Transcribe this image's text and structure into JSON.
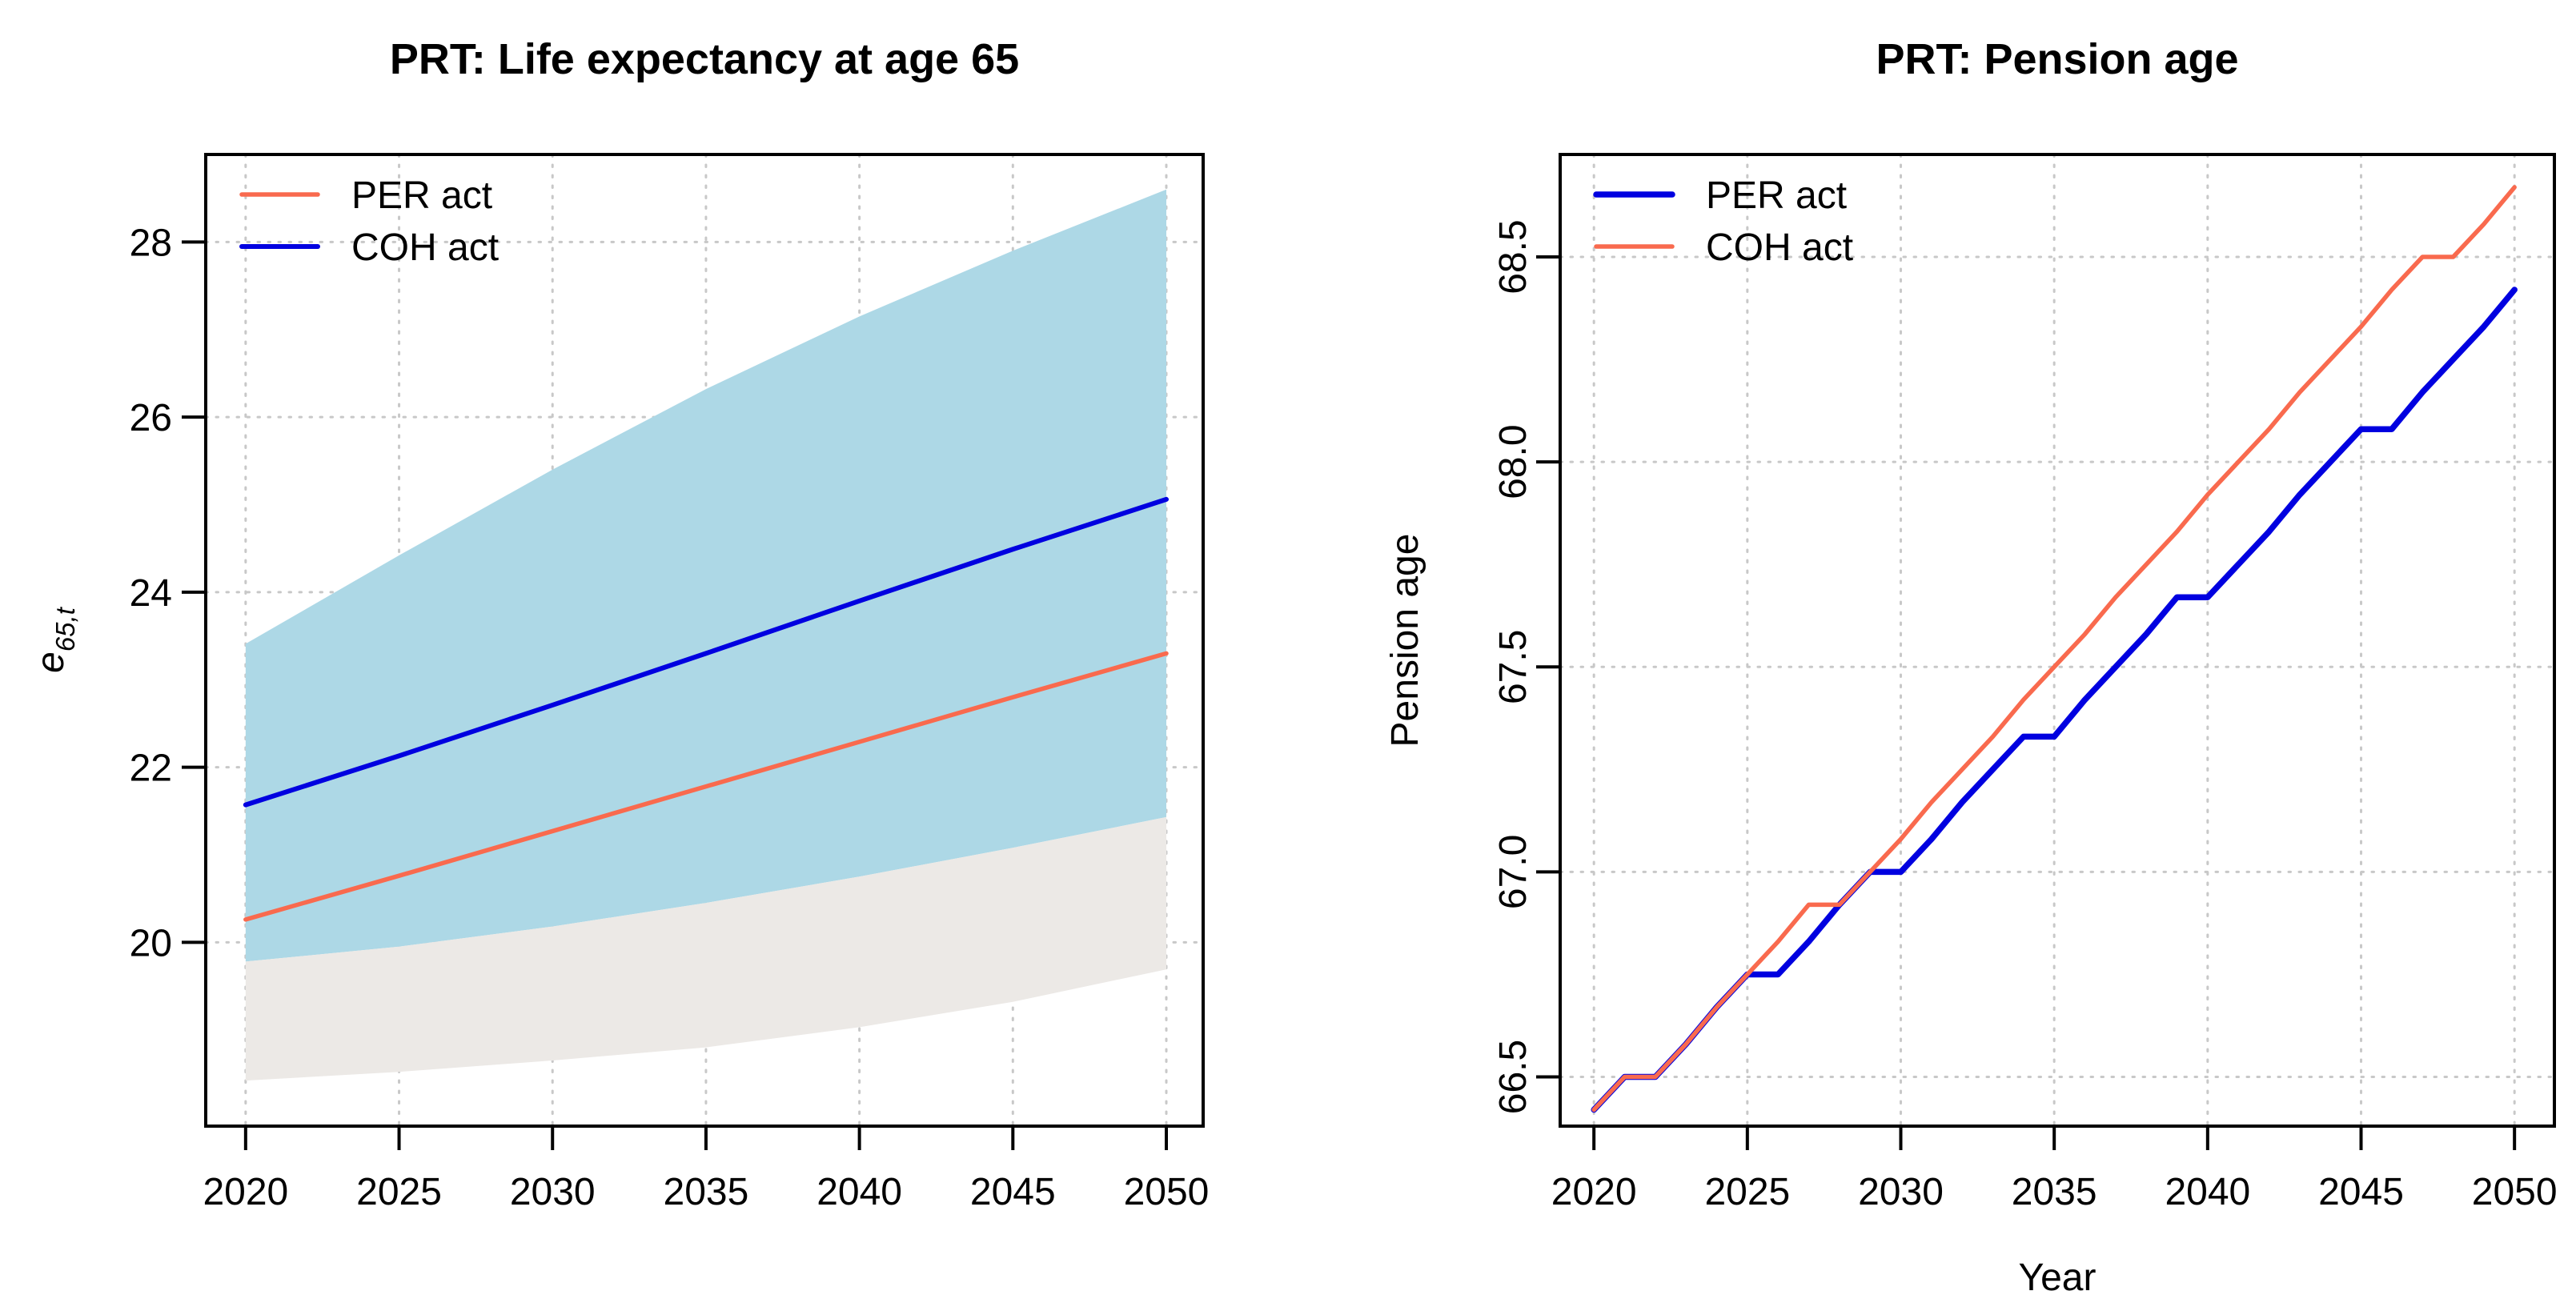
{
  "page": {
    "background": "#FFFFFF"
  },
  "colors": {
    "salmon": "#F96A4E",
    "blue": "#0000E0",
    "band_inner": "#ADD8E6",
    "band_outer": "#ECE9E6",
    "grid": "#C8C8C8",
    "axis": "#000000"
  },
  "chart_data": [
    {
      "id": "life-expectancy",
      "type": "line",
      "title": "PRT: Life expectancy at age 65",
      "xlabel": "",
      "ylabel": {
        "base": "e",
        "subscript": "65,t",
        "rotated": true
      },
      "xlim": [
        2018.7,
        2051.2
      ],
      "ylim": [
        17.9,
        29.0
      ],
      "grid": true,
      "x_ticks": [
        {
          "v": 2020,
          "label": "2020"
        },
        {
          "v": 2025,
          "label": "2025"
        },
        {
          "v": 2030,
          "label": "2030"
        },
        {
          "v": 2035,
          "label": "2035"
        },
        {
          "v": 2040,
          "label": "2040"
        },
        {
          "v": 2045,
          "label": "2045"
        },
        {
          "v": 2050,
          "label": "2050"
        }
      ],
      "y_ticks": [
        {
          "v": 20,
          "label": "20"
        },
        {
          "v": 22,
          "label": "22"
        },
        {
          "v": 24,
          "label": "24"
        },
        {
          "v": 26,
          "label": "26"
        },
        {
          "v": 28,
          "label": "28"
        }
      ],
      "y_tick_rotated": false,
      "bands": [
        {
          "name": "fan-band-inner",
          "color": "#ADD8E6",
          "x": [
            2020,
            2025,
            2030,
            2035,
            2040,
            2045,
            2050
          ],
          "upper": [
            23.41,
            24.42,
            25.4,
            26.32,
            27.15,
            27.9,
            28.6
          ],
          "lower": [
            19.78,
            19.95,
            20.18,
            20.45,
            20.75,
            21.08,
            21.43
          ]
        },
        {
          "name": "fan-band-outer",
          "color": "#ECE9E6",
          "x": [
            2020,
            2025,
            2030,
            2035,
            2040,
            2045,
            2050
          ],
          "upper": [
            19.78,
            19.95,
            20.18,
            20.45,
            20.75,
            21.08,
            21.43
          ],
          "lower": [
            18.42,
            18.52,
            18.65,
            18.8,
            19.03,
            19.32,
            19.69
          ]
        }
      ],
      "series": [
        {
          "name": "PER act",
          "color": "#F96A4E",
          "width": 5.5,
          "x": [
            2020,
            2025,
            2030,
            2035,
            2040,
            2045,
            2050
          ],
          "y": [
            20.26,
            20.76,
            21.27,
            21.78,
            22.29,
            22.8,
            23.3
          ]
        },
        {
          "name": "COH act",
          "color": "#0000E0",
          "width": 6,
          "x": [
            2020,
            2025,
            2030,
            2035,
            2040,
            2045,
            2050
          ],
          "y": [
            21.57,
            22.13,
            22.71,
            23.3,
            23.9,
            24.49,
            25.06
          ]
        }
      ],
      "legend": {
        "position": "top-left",
        "entries": [
          {
            "label": "PER act",
            "color": "#F96A4E",
            "width": 5.5
          },
          {
            "label": "COH act",
            "color": "#0000E0",
            "width": 6
          }
        ]
      }
    },
    {
      "id": "pension-age",
      "type": "line",
      "title": "PRT: Pension age",
      "xlabel": "Year",
      "ylabel": {
        "base": "Pension age",
        "subscript": "",
        "rotated": true
      },
      "xlim": [
        2018.9,
        2051.3
      ],
      "ylim": [
        66.38,
        68.75
      ],
      "grid": true,
      "x_ticks": [
        {
          "v": 2020,
          "label": "2020"
        },
        {
          "v": 2025,
          "label": "2025"
        },
        {
          "v": 2030,
          "label": "2030"
        },
        {
          "v": 2035,
          "label": "2035"
        },
        {
          "v": 2040,
          "label": "2040"
        },
        {
          "v": 2045,
          "label": "2045"
        },
        {
          "v": 2050,
          "label": "2050"
        }
      ],
      "y_ticks": [
        {
          "v": 66.5,
          "label": "66.5"
        },
        {
          "v": 67.0,
          "label": "67.0"
        },
        {
          "v": 67.5,
          "label": "67.5"
        },
        {
          "v": 68.0,
          "label": "68.0"
        },
        {
          "v": 68.5,
          "label": "68.5"
        }
      ],
      "y_tick_rotated": true,
      "bands": [],
      "series": [
        {
          "name": "PER act",
          "color": "#0000E0",
          "width": 7.5,
          "x": [
            2020,
            2021,
            2022,
            2023,
            2024,
            2025,
            2026,
            2027,
            2028,
            2029,
            2030,
            2031,
            2032,
            2033,
            2034,
            2035,
            2036,
            2037,
            2038,
            2039,
            2040,
            2041,
            2042,
            2043,
            2044,
            2045,
            2046,
            2047,
            2048,
            2049,
            2050
          ],
          "y": [
            66.42,
            66.5,
            66.5,
            66.58,
            66.67,
            66.75,
            66.75,
            66.83,
            66.92,
            67.0,
            67.0,
            67.08,
            67.17,
            67.25,
            67.33,
            67.33,
            67.42,
            67.5,
            67.58,
            67.67,
            67.67,
            67.75,
            67.83,
            67.92,
            68.0,
            68.08,
            68.08,
            68.17,
            68.25,
            68.33,
            68.42
          ]
        },
        {
          "name": "COH act",
          "color": "#F96A4E",
          "width": 5.5,
          "x": [
            2020,
            2021,
            2022,
            2023,
            2024,
            2025,
            2026,
            2027,
            2028,
            2029,
            2030,
            2031,
            2032,
            2033,
            2034,
            2035,
            2036,
            2037,
            2038,
            2039,
            2040,
            2041,
            2042,
            2043,
            2044,
            2045,
            2046,
            2047,
            2048,
            2049,
            2050
          ],
          "y": [
            66.42,
            66.5,
            66.5,
            66.58,
            66.67,
            66.75,
            66.83,
            66.92,
            66.92,
            67.0,
            67.08,
            67.17,
            67.25,
            67.33,
            67.42,
            67.5,
            67.58,
            67.67,
            67.75,
            67.83,
            67.92,
            68.0,
            68.08,
            68.17,
            68.25,
            68.33,
            68.42,
            68.5,
            68.5,
            68.58,
            68.67
          ]
        }
      ],
      "legend": {
        "position": "top-left",
        "entries": [
          {
            "label": "PER act",
            "color": "#0000E0",
            "width": 7.5
          },
          {
            "label": "COH act",
            "color": "#F96A4E",
            "width": 5.5
          }
        ]
      }
    }
  ]
}
